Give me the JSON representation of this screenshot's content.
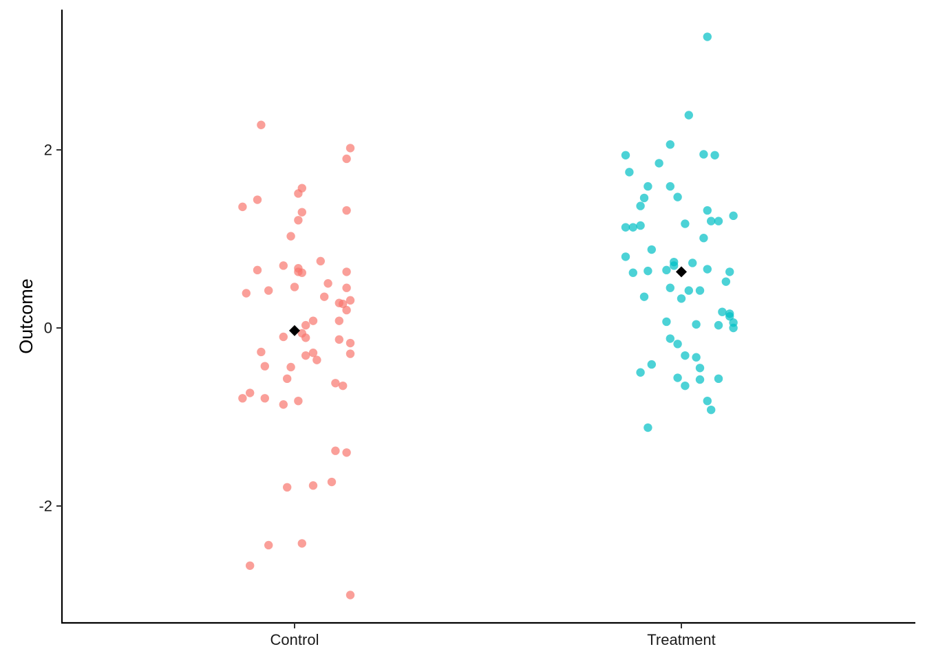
{
  "chart_data": {
    "type": "scatter",
    "title": "",
    "xlabel": "",
    "ylabel": "Outcome",
    "categories": [
      "Control",
      "Treatment"
    ],
    "ylim": [
      -3.3,
      3.5
    ],
    "y_ticks": [
      -2,
      0,
      2
    ],
    "y_tick_labels": [
      "-2",
      "0",
      "2"
    ],
    "grid": false,
    "legend": "none",
    "colors": {
      "Control": "#F8766D",
      "Treatment": "#00BFC4",
      "mean": "#000000"
    },
    "point_opacity": 0.7,
    "series": [
      {
        "category": "Control",
        "mean": -0.03,
        "points": [
          [
            -0.14,
            1.36
          ],
          [
            -0.14,
            -0.79
          ],
          [
            -0.13,
            0.39
          ],
          [
            -0.12,
            -0.73
          ],
          [
            -0.12,
            -2.67
          ],
          [
            -0.1,
            0.65
          ],
          [
            -0.1,
            1.44
          ],
          [
            -0.09,
            -0.27
          ],
          [
            -0.09,
            2.28
          ],
          [
            -0.08,
            -0.79
          ],
          [
            -0.08,
            -0.43
          ],
          [
            -0.07,
            -2.44
          ],
          [
            -0.07,
            0.42
          ],
          [
            -0.03,
            -0.86
          ],
          [
            -0.03,
            -0.1
          ],
          [
            -0.03,
            0.7
          ],
          [
            -0.02,
            -0.57
          ],
          [
            -0.02,
            -1.79
          ],
          [
            -0.01,
            -0.44
          ],
          [
            -0.01,
            1.03
          ],
          [
            0.0,
            0.46
          ],
          [
            0.01,
            1.21
          ],
          [
            0.01,
            1.51
          ],
          [
            0.01,
            0.67
          ],
          [
            0.01,
            0.63
          ],
          [
            0.01,
            -0.82
          ],
          [
            0.02,
            -0.06
          ],
          [
            0.02,
            -2.42
          ],
          [
            0.02,
            1.57
          ],
          [
            0.02,
            1.3
          ],
          [
            0.02,
            0.62
          ],
          [
            0.03,
            -0.31
          ],
          [
            0.03,
            0.03
          ],
          [
            0.03,
            -0.11
          ],
          [
            0.05,
            -0.28
          ],
          [
            0.05,
            -1.77
          ],
          [
            0.05,
            0.08
          ],
          [
            0.06,
            -0.36
          ],
          [
            0.07,
            0.75
          ],
          [
            0.08,
            0.35
          ],
          [
            0.09,
            0.5
          ],
          [
            0.1,
            -1.73
          ],
          [
            0.11,
            -0.62
          ],
          [
            0.11,
            -1.38
          ],
          [
            0.12,
            -0.13
          ],
          [
            0.12,
            0.08
          ],
          [
            0.12,
            0.28
          ],
          [
            0.13,
            -0.65
          ],
          [
            0.13,
            0.27
          ],
          [
            0.14,
            1.32
          ],
          [
            0.14,
            0.45
          ],
          [
            0.14,
            0.63
          ],
          [
            0.14,
            0.2
          ],
          [
            0.14,
            1.9
          ],
          [
            0.14,
            -1.4
          ],
          [
            0.15,
            -3.0
          ],
          [
            0.15,
            2.02
          ],
          [
            0.15,
            0.31
          ],
          [
            0.15,
            -0.17
          ],
          [
            0.15,
            -0.29
          ]
        ]
      },
      {
        "category": "Treatment",
        "mean": 0.63,
        "points": [
          [
            -0.15,
            0.8
          ],
          [
            -0.15,
            1.13
          ],
          [
            -0.15,
            1.94
          ],
          [
            -0.14,
            1.75
          ],
          [
            -0.13,
            0.62
          ],
          [
            -0.13,
            1.13
          ],
          [
            -0.11,
            -0.5
          ],
          [
            -0.11,
            1.15
          ],
          [
            -0.11,
            1.37
          ],
          [
            -0.1,
            1.46
          ],
          [
            -0.1,
            0.35
          ],
          [
            -0.09,
            -1.12
          ],
          [
            -0.09,
            1.59
          ],
          [
            -0.09,
            0.64
          ],
          [
            -0.08,
            0.88
          ],
          [
            -0.08,
            -0.41
          ],
          [
            -0.06,
            1.85
          ],
          [
            -0.04,
            0.65
          ],
          [
            -0.04,
            0.07
          ],
          [
            -0.03,
            2.06
          ],
          [
            -0.03,
            0.45
          ],
          [
            -0.03,
            -0.12
          ],
          [
            -0.03,
            1.59
          ],
          [
            -0.02,
            0.7
          ],
          [
            -0.02,
            0.74
          ],
          [
            -0.01,
            -0.18
          ],
          [
            -0.01,
            1.47
          ],
          [
            -0.01,
            -0.56
          ],
          [
            0.0,
            0.33
          ],
          [
            0.01,
            -0.31
          ],
          [
            0.01,
            1.17
          ],
          [
            0.01,
            -0.65
          ],
          [
            0.02,
            0.42
          ],
          [
            0.02,
            2.39
          ],
          [
            0.03,
            0.73
          ],
          [
            0.04,
            -0.33
          ],
          [
            0.04,
            0.04
          ],
          [
            0.05,
            0.42
          ],
          [
            0.05,
            -0.45
          ],
          [
            0.05,
            -0.58
          ],
          [
            0.06,
            1.01
          ],
          [
            0.06,
            1.95
          ],
          [
            0.07,
            0.66
          ],
          [
            0.07,
            -0.82
          ],
          [
            0.07,
            3.27
          ],
          [
            0.07,
            1.32
          ],
          [
            0.08,
            1.2
          ],
          [
            0.08,
            -0.92
          ],
          [
            0.09,
            1.94
          ],
          [
            0.1,
            1.2
          ],
          [
            0.1,
            0.03
          ],
          [
            0.1,
            -0.57
          ],
          [
            0.11,
            0.18
          ],
          [
            0.12,
            0.52
          ],
          [
            0.13,
            0.63
          ],
          [
            0.13,
            0.13
          ],
          [
            0.13,
            0.16
          ],
          [
            0.14,
            0.0
          ],
          [
            0.14,
            0.06
          ],
          [
            0.14,
            1.26
          ]
        ]
      }
    ]
  }
}
